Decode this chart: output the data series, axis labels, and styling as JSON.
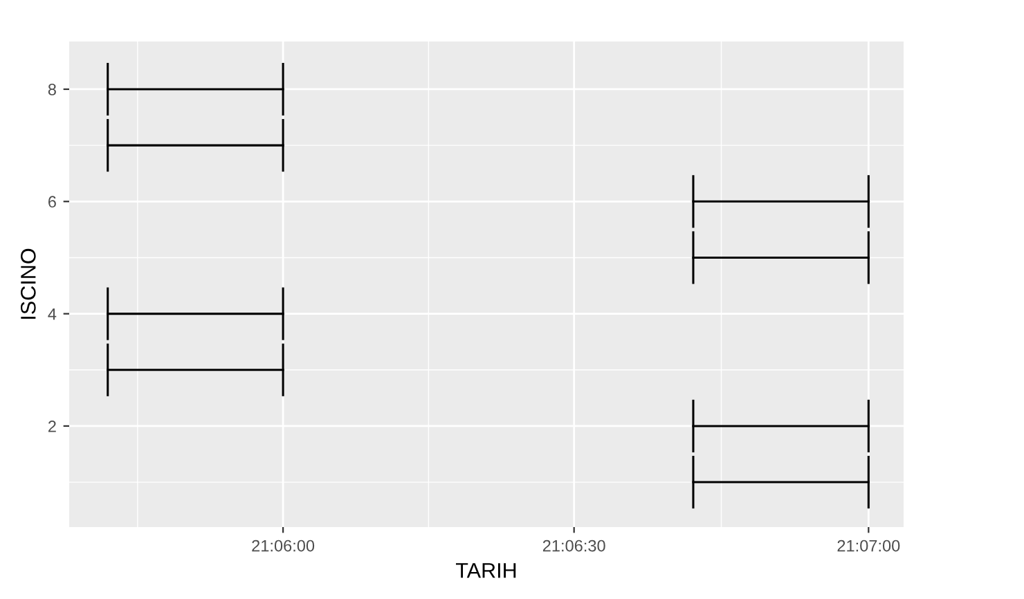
{
  "chart_data": {
    "type": "line",
    "xlabel": "TARIH",
    "ylabel": "ISCINO",
    "grid": true,
    "series": [
      {
        "color": "#000000",
        "x": [
          21.1117,
          21.1167
        ],
        "values": [
          1,
          1
        ]
      },
      {
        "color": "#000000",
        "x": [
          21.1117,
          21.1167
        ],
        "values": [
          2,
          2
        ]
      },
      {
        "color": "#000000",
        "x": [
          21.095,
          21.1
        ],
        "values": [
          3,
          3
        ]
      },
      {
        "color": "#000000",
        "x": [
          21.095,
          21.1
        ],
        "values": [
          4,
          4
        ]
      },
      {
        "color": "#000000",
        "x": [
          21.1117,
          21.1167
        ],
        "values": [
          5,
          5
        ]
      },
      {
        "color": "#000000",
        "x": [
          21.1117,
          21.1167
        ],
        "values": [
          6,
          6
        ]
      },
      {
        "color": "#000000",
        "x": [
          21.095,
          21.1
        ],
        "values": [
          7,
          7
        ]
      },
      {
        "color": "#000000",
        "x": [
          21.095,
          21.1
        ],
        "values": [
          8,
          8
        ]
      }
    ],
    "xlim": [
      21.0939,
      21.1177
    ],
    "ylim": [
      0.2,
      8.85
    ],
    "xticks": [
      {
        "value": 21.1,
        "label": "21:06:00"
      },
      {
        "value": 21.1083,
        "label": "21:06:30"
      },
      {
        "value": 21.1167,
        "label": "21:07:00"
      }
    ],
    "yticks": [
      2,
      4,
      6,
      8
    ]
  }
}
